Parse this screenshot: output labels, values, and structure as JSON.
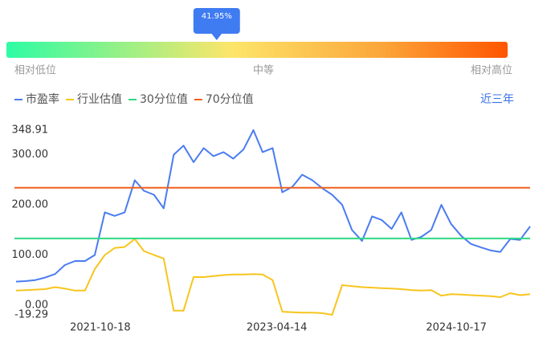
{
  "gauge": {
    "value": 41.95,
    "label": "41.95%",
    "labels": [
      "相对低位",
      "中等",
      "相对高位"
    ]
  },
  "range_button": "近三年",
  "chart_data": {
    "type": "line",
    "x": [
      "2021-02-01",
      "2021-03-01",
      "2021-04-01",
      "2021-05-01",
      "2021-06-01",
      "2021-07-01",
      "2021-08-01",
      "2021-09-01",
      "2021-10-01",
      "2021-11-01",
      "2021-12-01",
      "2022-01-01",
      "2022-02-01",
      "2022-03-01",
      "2022-04-01",
      "2022-05-01",
      "2022-06-01",
      "2022-07-01",
      "2022-08-01",
      "2022-09-01",
      "2022-10-01",
      "2022-11-01",
      "2022-12-01",
      "2023-01-01",
      "2023-02-01",
      "2023-03-01",
      "2023-04-01",
      "2023-05-01",
      "2023-06-01",
      "2023-07-01",
      "2023-08-01",
      "2023-09-01",
      "2023-10-01",
      "2023-11-01",
      "2023-12-01",
      "2024-01-01",
      "2024-02-01",
      "2024-03-01",
      "2024-04-01",
      "2024-05-01",
      "2024-06-01",
      "2024-07-01",
      "2024-08-01",
      "2024-09-01",
      "2024-10-01",
      "2024-11-01",
      "2024-12-01",
      "2025-01-01",
      "2025-02-01",
      "2025-03-01",
      "2025-04-01",
      "2025-05-01",
      "2025-06-01"
    ],
    "series": [
      {
        "name": "市盈率",
        "color": "#4a7cf0",
        "values": [
          47,
          48,
          50,
          55,
          62,
          80,
          88,
          88,
          100,
          185,
          178,
          185,
          249,
          228,
          220,
          193,
          300,
          318,
          285,
          313,
          297,
          305,
          292,
          310,
          348.91,
          305,
          313,
          225,
          236,
          260,
          249,
          233,
          220,
          200,
          150,
          128,
          177,
          170,
          152,
          185,
          130,
          136,
          150,
          200,
          162,
          138,
          122,
          115,
          109,
          106,
          132,
          130,
          157
        ]
      },
      {
        "name": "行业估值",
        "color": "#f7c51e",
        "values": [
          29,
          30,
          31,
          32,
          36,
          33,
          29,
          29,
          72,
          100,
          114,
          116,
          132,
          108,
          100,
          93,
          -11,
          -11,
          56,
          56,
          58,
          60,
          61,
          61,
          62,
          61,
          50,
          -13,
          -14,
          -15,
          -15,
          -16,
          -19.29,
          40,
          38,
          36,
          35,
          34,
          33,
          32,
          30,
          29,
          30,
          19,
          22,
          21,
          20,
          19,
          18,
          16,
          24,
          20,
          22
        ]
      },
      {
        "name": "30分位值",
        "color": "#2ed983",
        "value": 133
      },
      {
        "name": "70分位值",
        "color": "#f2601e",
        "value": 234
      }
    ],
    "xlim": [
      "2021-01-27",
      "2025-06-01"
    ],
    "xticks": [
      "2021-10-18",
      "2023-04-14",
      "2024-10-17"
    ],
    "ylim": [
      -19.29,
      348.91
    ],
    "yticks": [
      {
        "value": -19.29,
        "label": "-19.29"
      },
      {
        "value": 0,
        "label": "0.00"
      },
      {
        "value": 100,
        "label": "100.00"
      },
      {
        "value": 200,
        "label": "200.00"
      },
      {
        "value": 300,
        "label": "300.00"
      },
      {
        "value": 348.91,
        "label": "348.91"
      }
    ],
    "grid": false
  }
}
